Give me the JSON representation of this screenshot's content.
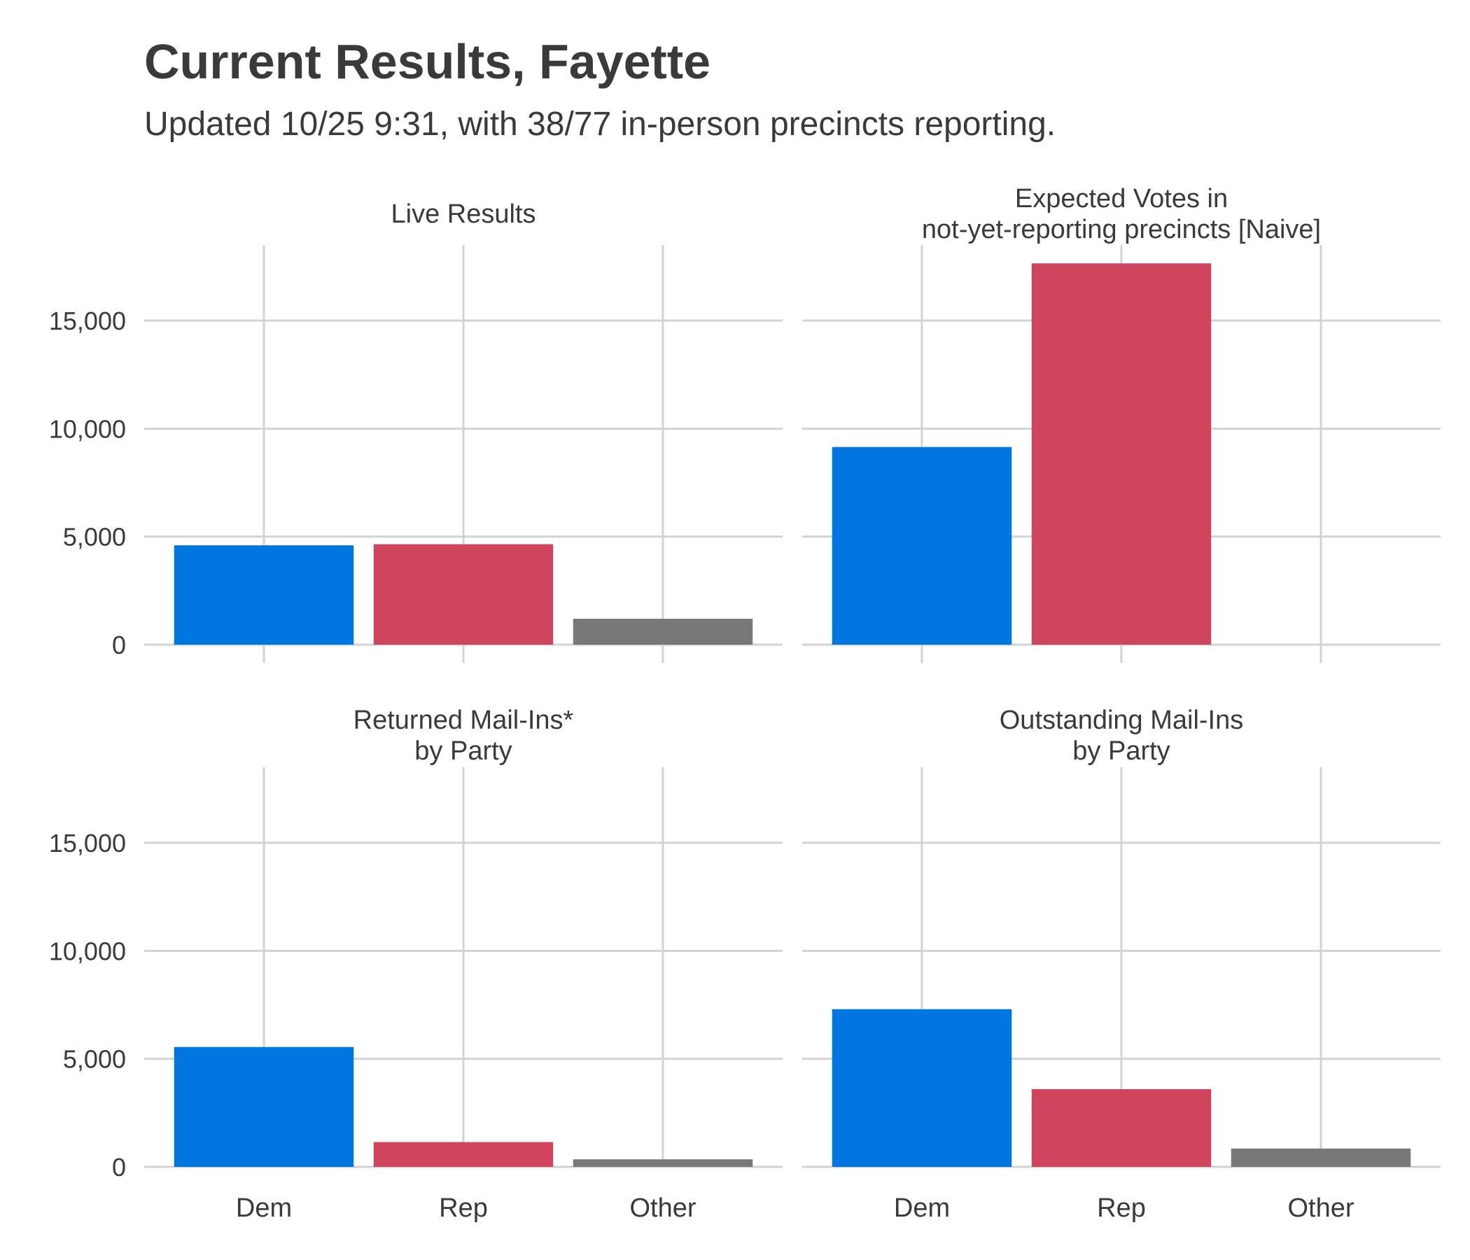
{
  "title": "Current Results, Fayette",
  "subtitle": "Updated 10/25 9:31, with 38/77 in-person precincts reporting.",
  "colors": {
    "Dem": "#0077e0",
    "Rep": "#cf455e",
    "Other": "#787878"
  },
  "chart_data": {
    "type": "bar",
    "categories": [
      "Dem",
      "Rep",
      "Other"
    ],
    "ylim": [
      0,
      18500
    ],
    "yticks": [
      0,
      5000,
      10000,
      15000
    ],
    "ytick_labels": [
      "0",
      "5,000",
      "10,000",
      "15,000"
    ],
    "grid": true,
    "panels": [
      {
        "strip": [
          "Live Results"
        ],
        "values": [
          4600,
          4650,
          1200
        ]
      },
      {
        "strip": [
          "Expected Votes in",
          "not-yet-reporting precincts [Naive]"
        ],
        "values": [
          9150,
          17650,
          0
        ]
      },
      {
        "strip": [
          "Returned Mail-Ins*",
          "by Party"
        ],
        "values": [
          5550,
          1150,
          350
        ]
      },
      {
        "strip": [
          "Outstanding Mail-Ins",
          "by Party"
        ],
        "values": [
          7300,
          3600,
          850
        ]
      }
    ]
  }
}
